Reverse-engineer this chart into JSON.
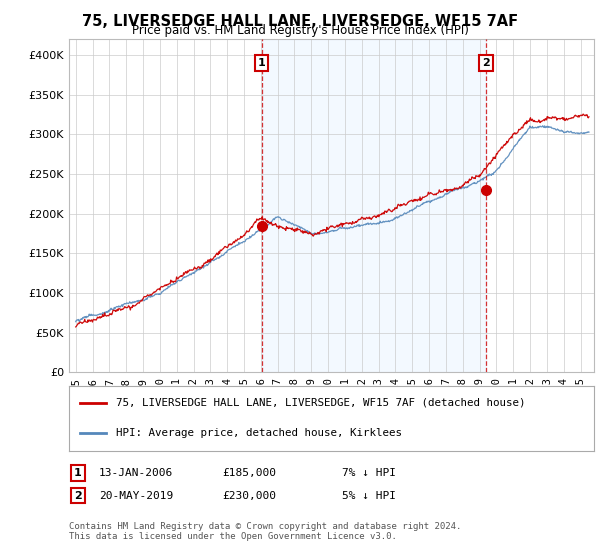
{
  "title": "75, LIVERSEDGE HALL LANE, LIVERSEDGE, WF15 7AF",
  "subtitle": "Price paid vs. HM Land Registry's House Price Index (HPI)",
  "ylabel_ticks": [
    "£0",
    "£50K",
    "£100K",
    "£150K",
    "£200K",
    "£250K",
    "£300K",
    "£350K",
    "£400K"
  ],
  "ytick_values": [
    0,
    50000,
    100000,
    150000,
    200000,
    250000,
    300000,
    350000,
    400000
  ],
  "ylim": [
    0,
    420000
  ],
  "xlim_start": 1994.6,
  "xlim_end": 2025.8,
  "sale1": {
    "date_num": 2006.04,
    "price": 185000,
    "label": "1",
    "note": "13-JAN-2006",
    "amount": "£185,000",
    "hpi": "7% ↓ HPI"
  },
  "sale2": {
    "date_num": 2019.38,
    "price": 230000,
    "label": "2",
    "note": "20-MAY-2019",
    "amount": "£230,000",
    "hpi": "5% ↓ HPI"
  },
  "legend_line1": "75, LIVERSEDGE HALL LANE, LIVERSEDGE, WF15 7AF (detached house)",
  "legend_line2": "HPI: Average price, detached house, Kirklees",
  "footnote": "Contains HM Land Registry data © Crown copyright and database right 2024.\nThis data is licensed under the Open Government Licence v3.0.",
  "line_color_red": "#cc0000",
  "line_color_blue": "#5588bb",
  "fill_color_blue": "#ddeeff",
  "bg_color": "#ffffff",
  "grid_color": "#cccccc",
  "shade_alpha": 0.35
}
